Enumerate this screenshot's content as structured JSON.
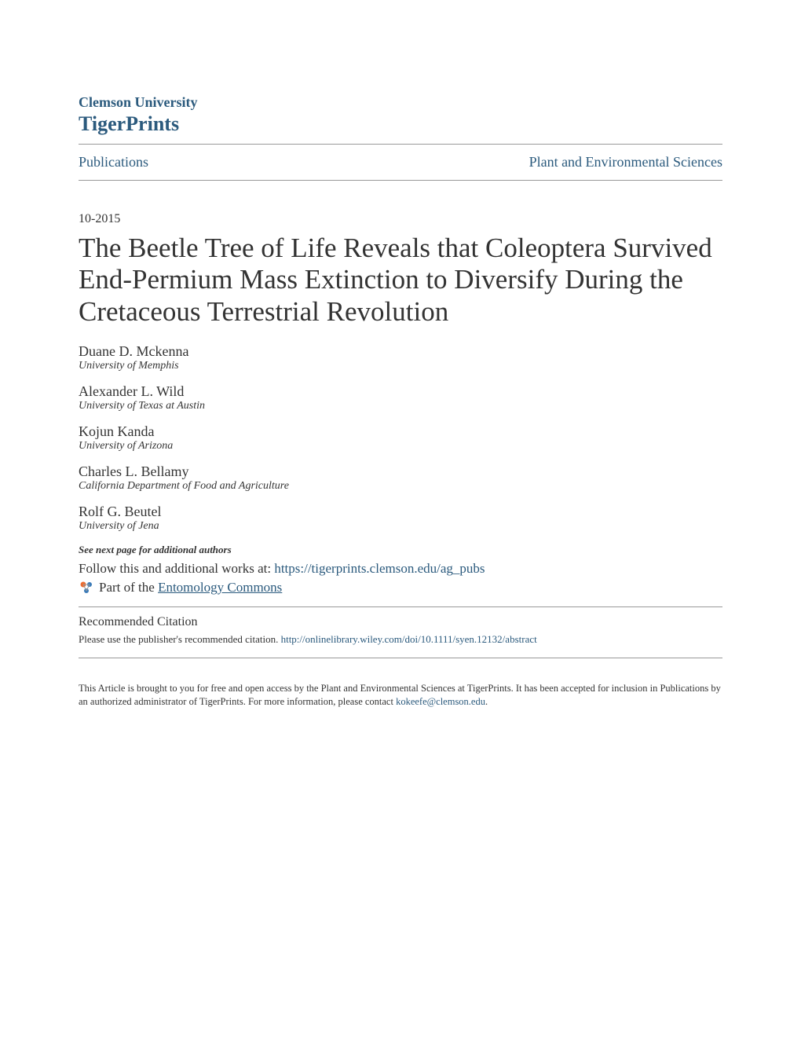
{
  "header": {
    "institution": "Clemson University",
    "repository": "TigerPrints"
  },
  "nav": {
    "left": "Publications",
    "right": "Plant and Environmental Sciences"
  },
  "date": "10-2015",
  "title": "The Beetle Tree of Life Reveals that Coleoptera Survived End-Permium Mass Extinction to Diversify During the Cretaceous Terrestrial Revolution",
  "authors": [
    {
      "name": "Duane D. Mckenna",
      "affiliation": "University of Memphis"
    },
    {
      "name": "Alexander L. Wild",
      "affiliation": "University of Texas at Austin"
    },
    {
      "name": "Kojun Kanda",
      "affiliation": "University of Arizona"
    },
    {
      "name": "Charles L. Bellamy",
      "affiliation": "California Department of Food and Agriculture"
    },
    {
      "name": "Rolf G. Beutel",
      "affiliation": "University of Jena"
    }
  ],
  "see_more": "See next page for additional authors",
  "follow": {
    "prefix": "Follow this and additional works at: ",
    "url": "https://tigerprints.clemson.edu/ag_pubs"
  },
  "partof": {
    "prefix": "Part of the ",
    "commons": "Entomology Commons"
  },
  "recommended": {
    "heading": "Recommended Citation",
    "text": "Please use the publisher's recommended citation. ",
    "url": "http://onlinelibrary.wiley.com/doi/10.1111/syen.12132/abstract"
  },
  "footer": {
    "text_part1": "This Article is brought to you for free and open access by the Plant and Environmental Sciences at TigerPrints. It has been accepted for inclusion in Publications by an authorized administrator of TigerPrints. For more information, please contact ",
    "email": "kokeefe@clemson.edu",
    "text_part2": "."
  },
  "colors": {
    "link": "#2b5a7d",
    "text": "#333333",
    "divider": "#999999",
    "background": "#ffffff",
    "icon_orange": "#ed6c30",
    "icon_blue": "#3b7bb8"
  }
}
